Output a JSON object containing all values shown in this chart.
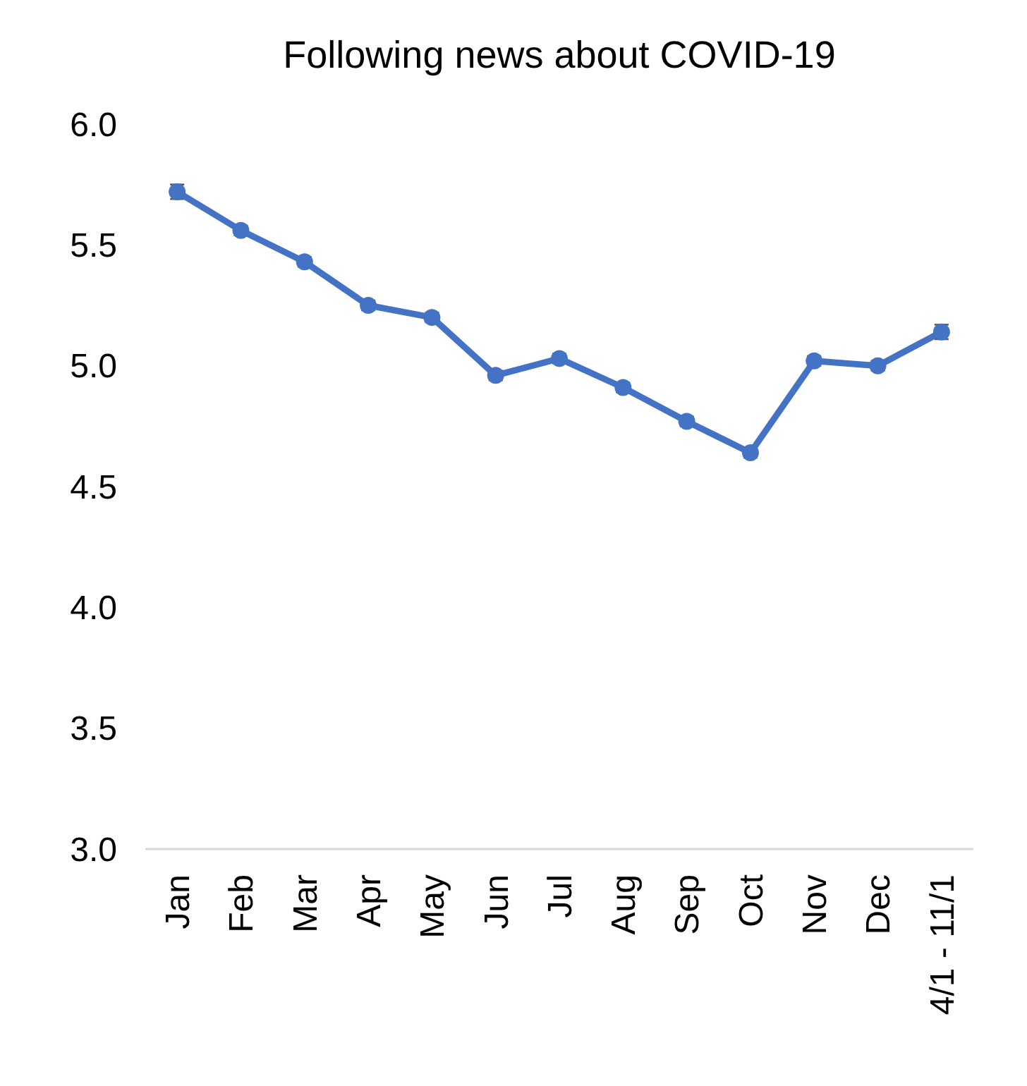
{
  "chart_data": {
    "type": "line",
    "title": "Following news about COVID-19",
    "categories": [
      "Jan",
      "Feb",
      "Mar",
      "Apr",
      "May",
      "Jun",
      "Jul",
      "Aug",
      "Sep",
      "Oct",
      "Nov",
      "Dec",
      "4/1 - 11/1"
    ],
    "series": [
      {
        "color": "#4472c4",
        "values": [
          5.72,
          5.56,
          5.43,
          5.25,
          5.2,
          4.96,
          5.03,
          4.91,
          4.77,
          4.64,
          5.02,
          5.0,
          5.14
        ],
        "errors": [
          0.03,
          0.02,
          0.02,
          0.02,
          0.02,
          0.02,
          0.02,
          0.02,
          0.02,
          0.02,
          0.02,
          0.02,
          0.03
        ]
      }
    ],
    "ylim": [
      3,
      6
    ],
    "yticks": [
      {
        "value": 3,
        "label": "3.0"
      },
      3.5,
      {
        "value": 4,
        "label": "4.0"
      },
      4.5,
      {
        "value": 5,
        "label": "5.0"
      },
      5.5,
      {
        "value": 6,
        "label": "6.0"
      }
    ],
    "grid": false,
    "marker": "circle",
    "line_style": "solid"
  }
}
